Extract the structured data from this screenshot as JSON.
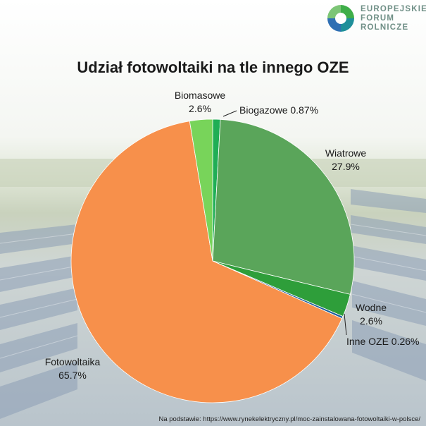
{
  "logo": {
    "lines": [
      "EUROPEJSKIE",
      "FORUM",
      "ROLNICZE"
    ],
    "colors": {
      "green": "#3fae49",
      "teal": "#1f8f9a",
      "blue": "#2f6fb3"
    }
  },
  "source": "Na podstawie: https://www.rynekelektryczny.pl/moc-zainstalowana-fotowoltaiki-w-polsce/",
  "chart_data": {
    "type": "pie",
    "title": "Udział fotowoltaiki na tle innego OZE",
    "slices": [
      {
        "name": "Biogazowe",
        "value": 0.87,
        "label": "0.87%",
        "color": "#1fae55"
      },
      {
        "name": "Wiatrowe",
        "value": 27.9,
        "label": "27.9%",
        "color": "#5aa55a"
      },
      {
        "name": "Wodne",
        "value": 2.6,
        "label": "2.6%",
        "color": "#2e9e3a"
      },
      {
        "name": "Inne OZE",
        "value": 0.26,
        "label": "0.26%",
        "color": "#1d5f9a"
      },
      {
        "name": "Fotowoltaika",
        "value": 65.7,
        "label": "65.7%",
        "color": "#f7904b"
      },
      {
        "name": "Biomasowe",
        "value": 2.6,
        "label": "2.6%",
        "color": "#78d45a"
      }
    ]
  }
}
